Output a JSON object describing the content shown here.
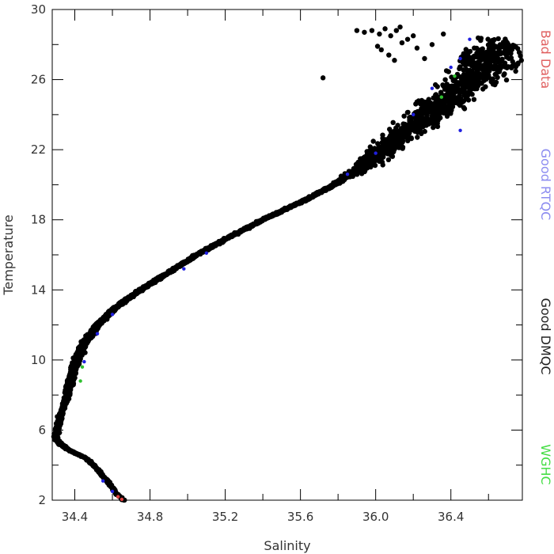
{
  "chart_data": {
    "type": "scatter",
    "xlabel": "Salinity",
    "ylabel": "Temperature",
    "xlim": [
      34.28,
      36.78
    ],
    "ylim": [
      2,
      30
    ],
    "xticks": [
      34.4,
      34.8,
      35.2,
      35.6,
      36.0,
      36.4
    ],
    "yticks": [
      2,
      6,
      10,
      14,
      18,
      22,
      26,
      30
    ],
    "grid": false,
    "legend_placement": "right, vertical",
    "legend": [
      {
        "label": "Bad Data",
        "color": "#e06060"
      },
      {
        "label": "Good RTQC",
        "color": "#8c8cf0"
      },
      {
        "label": "Good DMQC",
        "color": "#202020"
      },
      {
        "label": "WGHC",
        "color": "#44dd44"
      }
    ],
    "profile": [
      [
        34.66,
        2.0
      ],
      [
        34.62,
        2.4
      ],
      [
        34.58,
        3.0
      ],
      [
        34.54,
        3.5
      ],
      [
        34.5,
        4.0
      ],
      [
        34.46,
        4.4
      ],
      [
        34.38,
        4.8
      ],
      [
        34.32,
        5.2
      ],
      [
        34.3,
        5.6
      ],
      [
        34.31,
        6.2
      ],
      [
        34.33,
        7.0
      ],
      [
        34.36,
        8.0
      ],
      [
        34.38,
        9.0
      ],
      [
        34.41,
        10.0
      ],
      [
        34.45,
        11.0
      ],
      [
        34.52,
        12.0
      ],
      [
        34.62,
        13.0
      ],
      [
        34.75,
        14.0
      ],
      [
        34.9,
        15.0
      ],
      [
        35.05,
        16.0
      ],
      [
        35.22,
        17.0
      ],
      [
        35.4,
        18.0
      ],
      [
        35.6,
        19.0
      ],
      [
        35.78,
        20.0
      ],
      [
        35.92,
        21.0
      ],
      [
        36.05,
        22.0
      ],
      [
        36.15,
        23.0
      ],
      [
        36.27,
        24.0
      ],
      [
        36.4,
        25.0
      ],
      [
        36.52,
        26.0
      ],
      [
        36.6,
        27.0
      ],
      [
        36.65,
        28.0
      ]
    ],
    "series": [
      {
        "name": "Bad Data",
        "color": "#e04040",
        "points": [
          [
            34.65,
            2.05
          ],
          [
            34.63,
            2.2
          ]
        ]
      },
      {
        "name": "Good RTQC",
        "color": "#2020e0",
        "points": [
          [
            34.45,
            9.9
          ],
          [
            34.52,
            11.5
          ],
          [
            34.6,
            12.6
          ],
          [
            34.98,
            15.2
          ],
          [
            35.1,
            16.1
          ],
          [
            35.85,
            20.6
          ],
          [
            36.0,
            21.8
          ],
          [
            36.2,
            24.0
          ],
          [
            36.3,
            25.5
          ],
          [
            36.4,
            26.7
          ],
          [
            36.45,
            27.2
          ],
          [
            36.5,
            28.3
          ],
          [
            36.45,
            23.1
          ],
          [
            34.6,
            2.5
          ],
          [
            34.55,
            3.1
          ]
        ]
      },
      {
        "name": "WGHC",
        "color": "#30c030",
        "points": [
          [
            34.43,
            8.8
          ],
          [
            34.44,
            9.6
          ],
          [
            36.42,
            26.2
          ],
          [
            36.35,
            25.0
          ]
        ]
      }
    ],
    "outliers": [
      [
        35.9,
        28.8
      ],
      [
        35.94,
        28.7
      ],
      [
        35.98,
        28.8
      ],
      [
        36.02,
        28.6
      ],
      [
        36.05,
        28.9
      ],
      [
        36.08,
        28.5
      ],
      [
        36.11,
        28.8
      ],
      [
        36.14,
        28.1
      ],
      [
        36.17,
        28.3
      ],
      [
        36.2,
        28.5
      ],
      [
        36.01,
        27.9
      ],
      [
        36.03,
        27.7
      ],
      [
        36.07,
        27.4
      ],
      [
        36.1,
        27.1
      ],
      [
        35.72,
        26.1
      ],
      [
        36.13,
        29.0
      ],
      [
        36.22,
        27.8
      ],
      [
        36.26,
        27.2
      ],
      [
        36.3,
        28.0
      ],
      [
        36.36,
        28.6
      ]
    ]
  }
}
